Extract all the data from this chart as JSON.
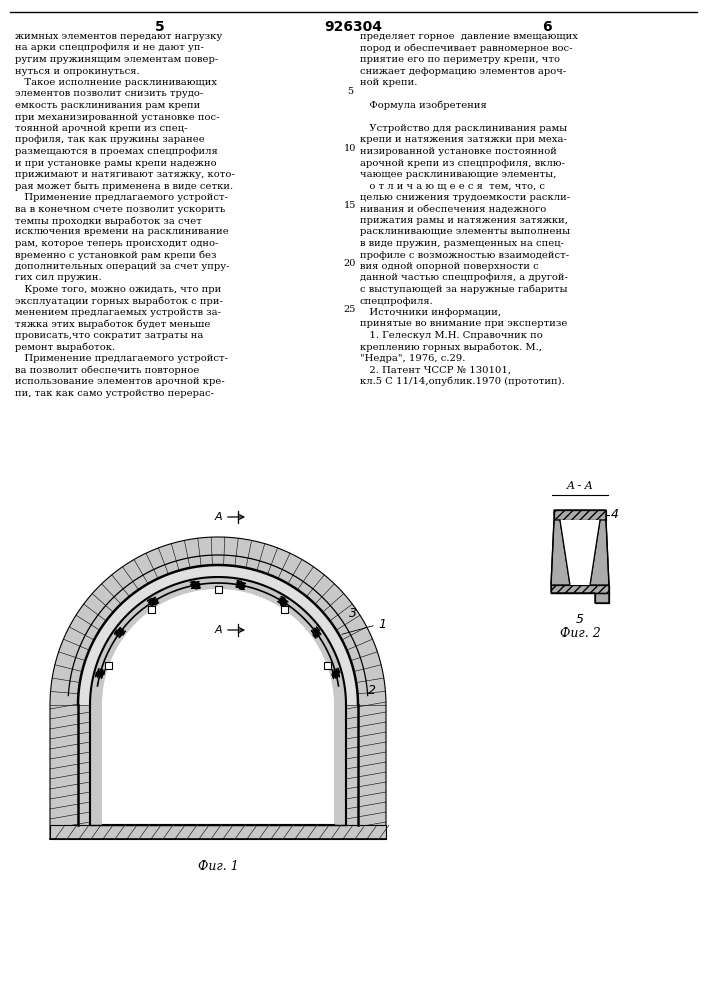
{
  "page_number_left": "5",
  "page_number_center": "926304",
  "page_number_right": "6",
  "left_col_lines": [
    "жимных элементов передают нагрузку",
    "на арки спецпрофиля и не дают уп-",
    "ругим пружинящим элементам повер-",
    "нуться и опрокинуться.",
    "   Такое исполнение расклинивающих",
    "элементов позволит снизить трудо-",
    "емкость расклинивания рам крепи",
    "при механизированной установке пос-",
    "тоянной арочной крепи из спец-",
    "профиля, так как пружины заранее",
    "размещаются в проемах спецпрофиля",
    "и при установке рамы крепи надежно",
    "прижимают и натягивают затяжку, кото-",
    "рая может быть применена в виде сетки.",
    "   Применение предлагаемого устройст-",
    "ва в конечном счете позволит ускорить",
    "темпы проходки выработок за счет",
    "исключения времени на расклинивание",
    "рам, которое теперь происходит одно-",
    "временно с установкой рам крепи без",
    "дополнительных операций за счет упру-",
    "гих сил пружин.",
    "   Кроме того, можно ожидать, что при",
    "эксплуатации горных выработок с при-",
    "менением предлагаемых устройств за-",
    "тяжка этих выработок будет меньше",
    "провисать,что сократит затраты на",
    "ремонт выработок.",
    "   Применение предлагаемого устройст-",
    "ва позволит обеспечить повторное",
    "использование элементов арочной кре-",
    "пи, так как само устройство перерас-"
  ],
  "right_col_lines": [
    "пределяет горное  давление вмещающих",
    "пород и обеспечивает равномерное вос-",
    "приятие его по периметру крепи, что",
    "снижает деформацию элементов ароч-",
    "ной крепи.",
    "",
    "   Формула изобретения",
    "",
    "   Устройство для расклинивания рамы",
    "крепи и натяжения затяжки при меха-",
    "низированной установке постоянной",
    "арочной крепи из спецпрофиля, вклю-",
    "чающее расклинивающие элементы,",
    "   о т л и ч а ю щ е е с я  тем, что, с",
    "целью снижения трудоемкости раскли-",
    "нивания и обеспечения надежного",
    "прижатия рамы и натяжения затяжки,",
    "расклинивающие элементы выполнены",
    "в виде пружин, размещенных на спец-",
    "профиле с возможностью взаимодейст-",
    "вия одной опорной поверхности с",
    "данной частью спецпрофиля, а другой-",
    "с выступающей за наружные габариты",
    "спецпрофиля.",
    "   Источники информации,",
    "принятые во внимание при экспертизе",
    "   1. Гелескул М.Н. Справочник по",
    "креплению горных выработок. М.,",
    "\"Недра\", 1976, с.29.",
    "   2. Патент ЧССР № 130101,",
    "кл.5 С 11/14,опублик.1970 (прототип)."
  ],
  "line_numbers": [
    "5",
    "10",
    "15",
    "20",
    "25"
  ],
  "fig1_caption": "Фиг. 1",
  "fig2_caption": "Фиг. 2",
  "aa_label": "A - A",
  "bg_color": "#ffffff",
  "text_color": "#000000"
}
